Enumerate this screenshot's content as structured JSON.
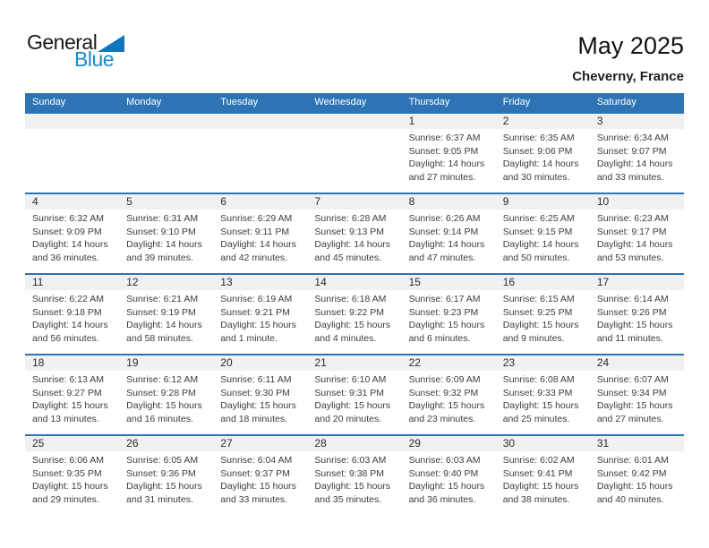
{
  "logo": {
    "part1": "General",
    "part2": "Blue",
    "triangle_color": "#0f75bc",
    "blue_text_color": "#1989cb"
  },
  "header": {
    "title": "May 2025",
    "subtitle": "Cheverny, France"
  },
  "colors": {
    "header_bg": "#2e74b5",
    "week_separator": "#2e74b5",
    "number_band_bg": "#f1f1f1"
  },
  "calendar": {
    "day_headers": [
      "Sunday",
      "Monday",
      "Tuesday",
      "Wednesday",
      "Thursday",
      "Friday",
      "Saturday"
    ],
    "labels": {
      "sunrise": "Sunrise:",
      "sunset": "Sunset:",
      "daylight": "Daylight:"
    },
    "weeks": [
      [
        null,
        null,
        null,
        null,
        {
          "day": "1",
          "sunrise": "6:37 AM",
          "sunset": "9:05 PM",
          "daylight1": "14 hours",
          "daylight2": "and 27 minutes."
        },
        {
          "day": "2",
          "sunrise": "6:35 AM",
          "sunset": "9:06 PM",
          "daylight1": "14 hours",
          "daylight2": "and 30 minutes."
        },
        {
          "day": "3",
          "sunrise": "6:34 AM",
          "sunset": "9:07 PM",
          "daylight1": "14 hours",
          "daylight2": "and 33 minutes."
        }
      ],
      [
        {
          "day": "4",
          "sunrise": "6:32 AM",
          "sunset": "9:09 PM",
          "daylight1": "14 hours",
          "daylight2": "and 36 minutes."
        },
        {
          "day": "5",
          "sunrise": "6:31 AM",
          "sunset": "9:10 PM",
          "daylight1": "14 hours",
          "daylight2": "and 39 minutes."
        },
        {
          "day": "6",
          "sunrise": "6:29 AM",
          "sunset": "9:11 PM",
          "daylight1": "14 hours",
          "daylight2": "and 42 minutes."
        },
        {
          "day": "7",
          "sunrise": "6:28 AM",
          "sunset": "9:13 PM",
          "daylight1": "14 hours",
          "daylight2": "and 45 minutes."
        },
        {
          "day": "8",
          "sunrise": "6:26 AM",
          "sunset": "9:14 PM",
          "daylight1": "14 hours",
          "daylight2": "and 47 minutes."
        },
        {
          "day": "9",
          "sunrise": "6:25 AM",
          "sunset": "9:15 PM",
          "daylight1": "14 hours",
          "daylight2": "and 50 minutes."
        },
        {
          "day": "10",
          "sunrise": "6:23 AM",
          "sunset": "9:17 PM",
          "daylight1": "14 hours",
          "daylight2": "and 53 minutes."
        }
      ],
      [
        {
          "day": "11",
          "sunrise": "6:22 AM",
          "sunset": "9:18 PM",
          "daylight1": "14 hours",
          "daylight2": "and 56 minutes."
        },
        {
          "day": "12",
          "sunrise": "6:21 AM",
          "sunset": "9:19 PM",
          "daylight1": "14 hours",
          "daylight2": "and 58 minutes."
        },
        {
          "day": "13",
          "sunrise": "6:19 AM",
          "sunset": "9:21 PM",
          "daylight1": "15 hours",
          "daylight2": "and 1 minute."
        },
        {
          "day": "14",
          "sunrise": "6:18 AM",
          "sunset": "9:22 PM",
          "daylight1": "15 hours",
          "daylight2": "and 4 minutes."
        },
        {
          "day": "15",
          "sunrise": "6:17 AM",
          "sunset": "9:23 PM",
          "daylight1": "15 hours",
          "daylight2": "and 6 minutes."
        },
        {
          "day": "16",
          "sunrise": "6:15 AM",
          "sunset": "9:25 PM",
          "daylight1": "15 hours",
          "daylight2": "and 9 minutes."
        },
        {
          "day": "17",
          "sunrise": "6:14 AM",
          "sunset": "9:26 PM",
          "daylight1": "15 hours",
          "daylight2": "and 11 minutes."
        }
      ],
      [
        {
          "day": "18",
          "sunrise": "6:13 AM",
          "sunset": "9:27 PM",
          "daylight1": "15 hours",
          "daylight2": "and 13 minutes."
        },
        {
          "day": "19",
          "sunrise": "6:12 AM",
          "sunset": "9:28 PM",
          "daylight1": "15 hours",
          "daylight2": "and 16 minutes."
        },
        {
          "day": "20",
          "sunrise": "6:11 AM",
          "sunset": "9:30 PM",
          "daylight1": "15 hours",
          "daylight2": "and 18 minutes."
        },
        {
          "day": "21",
          "sunrise": "6:10 AM",
          "sunset": "9:31 PM",
          "daylight1": "15 hours",
          "daylight2": "and 20 minutes."
        },
        {
          "day": "22",
          "sunrise": "6:09 AM",
          "sunset": "9:32 PM",
          "daylight1": "15 hours",
          "daylight2": "and 23 minutes."
        },
        {
          "day": "23",
          "sunrise": "6:08 AM",
          "sunset": "9:33 PM",
          "daylight1": "15 hours",
          "daylight2": "and 25 minutes."
        },
        {
          "day": "24",
          "sunrise": "6:07 AM",
          "sunset": "9:34 PM",
          "daylight1": "15 hours",
          "daylight2": "and 27 minutes."
        }
      ],
      [
        {
          "day": "25",
          "sunrise": "6:06 AM",
          "sunset": "9:35 PM",
          "daylight1": "15 hours",
          "daylight2": "and 29 minutes."
        },
        {
          "day": "26",
          "sunrise": "6:05 AM",
          "sunset": "9:36 PM",
          "daylight1": "15 hours",
          "daylight2": "and 31 minutes."
        },
        {
          "day": "27",
          "sunrise": "6:04 AM",
          "sunset": "9:37 PM",
          "daylight1": "15 hours",
          "daylight2": "and 33 minutes."
        },
        {
          "day": "28",
          "sunrise": "6:03 AM",
          "sunset": "9:38 PM",
          "daylight1": "15 hours",
          "daylight2": "and 35 minutes."
        },
        {
          "day": "29",
          "sunrise": "6:03 AM",
          "sunset": "9:40 PM",
          "daylight1": "15 hours",
          "daylight2": "and 36 minutes."
        },
        {
          "day": "30",
          "sunrise": "6:02 AM",
          "sunset": "9:41 PM",
          "daylight1": "15 hours",
          "daylight2": "and 38 minutes."
        },
        {
          "day": "31",
          "sunrise": "6:01 AM",
          "sunset": "9:42 PM",
          "daylight1": "15 hours",
          "daylight2": "and 40 minutes."
        }
      ]
    ]
  }
}
